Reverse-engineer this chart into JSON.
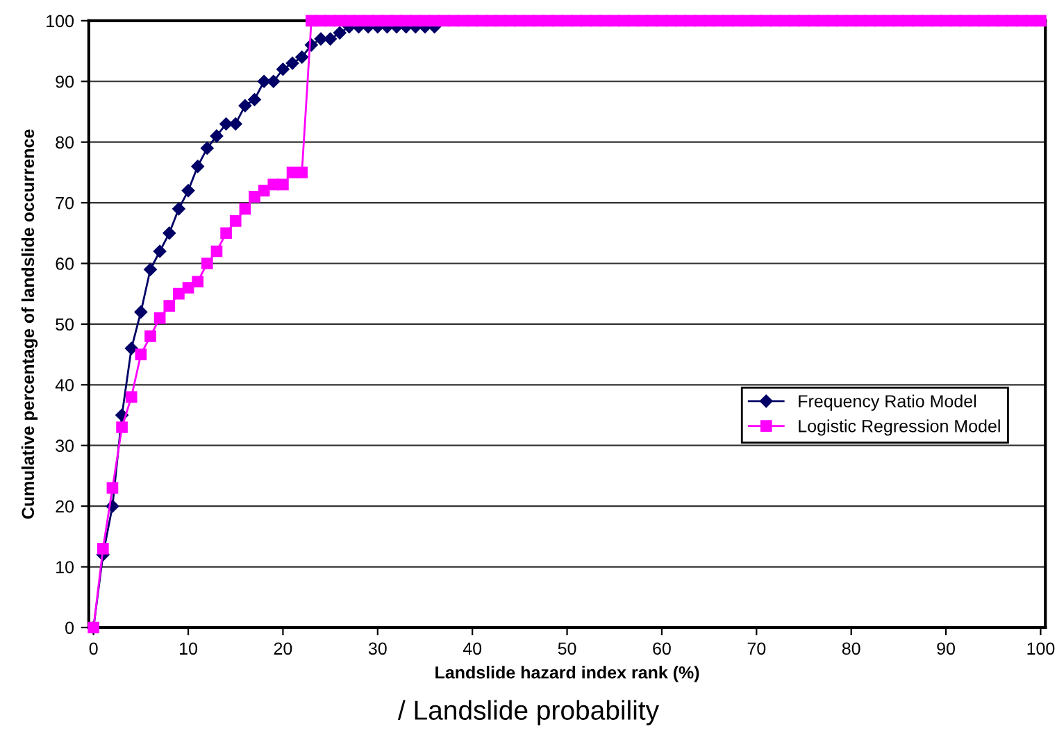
{
  "chart_data": {
    "type": "line",
    "xlabel": "Landslide hazard index rank (%)",
    "ylabel": "Cumulative percentage of landslide occurrence",
    "annotations": [
      "/ Landslide probability"
    ],
    "xlim": [
      -0.5,
      100.5
    ],
    "ylim": [
      0,
      100
    ],
    "xticks": [
      0,
      10,
      20,
      30,
      40,
      50,
      60,
      70,
      80,
      90,
      100
    ],
    "yticks": [
      0,
      10,
      20,
      30,
      40,
      50,
      60,
      70,
      80,
      90,
      100
    ],
    "grid": "y",
    "legend": "center right",
    "series": [
      {
        "name": "Frequency Ratio Model",
        "color": "#000066",
        "marker": "diamond",
        "x": [
          0,
          1,
          2,
          3,
          4,
          5,
          6,
          7,
          8,
          9,
          10,
          11,
          12,
          13,
          14,
          15,
          16,
          17,
          18,
          19,
          20,
          21,
          22,
          23,
          24,
          25,
          26,
          27,
          28,
          29,
          30,
          31,
          32,
          33,
          34,
          35,
          36
        ],
        "values": [
          0,
          12,
          20,
          35,
          46,
          52,
          59,
          62,
          65,
          69,
          72,
          76,
          79,
          81,
          83,
          83,
          86,
          87,
          90,
          90,
          92,
          93,
          94,
          96,
          97,
          97,
          98,
          99,
          99,
          99,
          99,
          99,
          99,
          99,
          99,
          99,
          99
        ]
      },
      {
        "name": "Logistic Regression Model",
        "color": "#ff00ff",
        "marker": "square",
        "x": [
          0,
          1,
          2,
          3,
          4,
          5,
          6,
          7,
          8,
          9,
          10,
          11,
          12,
          13,
          14,
          15,
          16,
          17,
          18,
          19,
          20,
          21,
          22,
          23,
          24,
          25,
          26,
          27,
          28,
          29,
          30,
          31,
          32,
          33,
          34,
          35,
          36,
          37,
          38,
          39,
          40,
          41,
          42,
          43,
          44,
          45,
          46,
          47,
          48,
          49,
          50,
          51,
          52,
          53,
          54,
          55,
          56,
          57,
          58,
          59,
          60,
          61,
          62,
          63,
          64,
          65,
          66,
          67,
          68,
          69,
          70,
          71,
          72,
          73,
          74,
          75,
          76,
          77,
          78,
          79,
          80,
          81,
          82,
          83,
          84,
          85,
          86,
          87,
          88,
          89,
          90,
          91,
          92,
          93,
          94,
          95,
          96,
          97,
          98,
          99,
          100
        ],
        "values": [
          0,
          13,
          23,
          33,
          38,
          45,
          48,
          51,
          53,
          55,
          56,
          57,
          60,
          62,
          65,
          67,
          69,
          71,
          72,
          73,
          73,
          75,
          75,
          100,
          100,
          100,
          100,
          100,
          100,
          100,
          100,
          100,
          100,
          100,
          100,
          100,
          100,
          100,
          100,
          100,
          100,
          100,
          100,
          100,
          100,
          100,
          100,
          100,
          100,
          100,
          100,
          100,
          100,
          100,
          100,
          100,
          100,
          100,
          100,
          100,
          100,
          100,
          100,
          100,
          100,
          100,
          100,
          100,
          100,
          100,
          100,
          100,
          100,
          100,
          100,
          100,
          100,
          100,
          100,
          100,
          100,
          100,
          100,
          100,
          100,
          100,
          100,
          100,
          100,
          100,
          100,
          100,
          100,
          100,
          100,
          100,
          100,
          100,
          100,
          100,
          100
        ]
      }
    ]
  }
}
